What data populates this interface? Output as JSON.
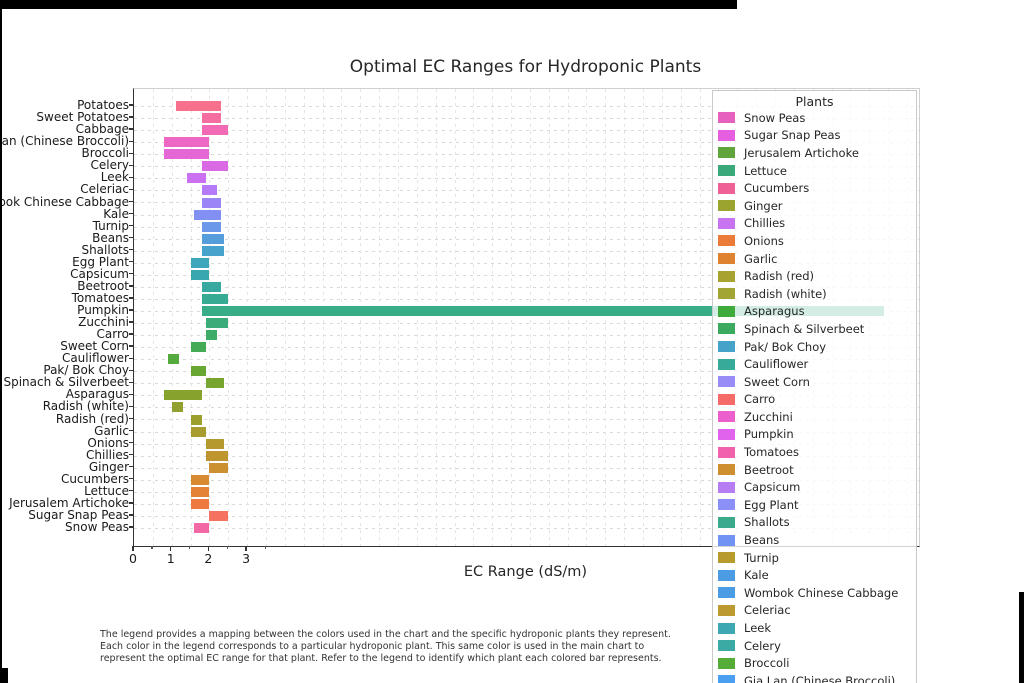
{
  "title": "Optimal EC Ranges for Hydroponic Plants",
  "x_axis": {
    "label": "EC Range (dS/m)",
    "ticks": [
      "0",
      "1",
      "2",
      "3"
    ]
  },
  "footnote": {
    "lines": [
      "The legend provides a mapping between the colors used in the chart and the specific hydroponic plants they represent.",
      "Each color in the legend corresponds to a particular hydroponic plant. This same color is used in the main chart to",
      "represent the optimal EC range for that plant. Refer to the legend to identify which plant each colored bar represents."
    ]
  },
  "legend": {
    "title": "Plants",
    "entries": [
      {
        "label": "Snow Peas",
        "color": "#e561bd"
      },
      {
        "label": "Sugar Snap Peas",
        "color": "#e55fe0"
      },
      {
        "label": "Jerusalem Artichoke",
        "color": "#60a53c"
      },
      {
        "label": "Lettuce",
        "color": "#3aa878"
      },
      {
        "label": "Cucumbers",
        "color": "#ef6096"
      },
      {
        "label": "Ginger",
        "color": "#9aa42f"
      },
      {
        "label": "Chillies",
        "color": "#c873f0"
      },
      {
        "label": "Onions",
        "color": "#ea7b38"
      },
      {
        "label": "Garlic",
        "color": "#df8331"
      },
      {
        "label": "Radish (red)",
        "color": "#a8a230"
      },
      {
        "label": "Radish (white)",
        "color": "#a2a433"
      },
      {
        "label": "Asparagus",
        "color": "#3fab3c"
      },
      {
        "label": "Spinach & Silverbeet",
        "color": "#3caa5e"
      },
      {
        "label": "Pak/ Bok Choy",
        "color": "#45a3c9"
      },
      {
        "label": "Cauliflower",
        "color": "#38aa99"
      },
      {
        "label": "Sweet Corn",
        "color": "#988df6"
      },
      {
        "label": "Carro",
        "color": "#f56b67"
      },
      {
        "label": "Zucchini",
        "color": "#ec60cd"
      },
      {
        "label": "Pumpkin",
        "color": "#df63ed"
      },
      {
        "label": "Tomatoes",
        "color": "#f161ac"
      },
      {
        "label": "Beetroot",
        "color": "#cd8f30"
      },
      {
        "label": "Capsicum",
        "color": "#b77ef4"
      },
      {
        "label": "Egg Plant",
        "color": "#8b8ff8"
      },
      {
        "label": "Shallots",
        "color": "#3ba98b"
      },
      {
        "label": "Beans",
        "color": "#7093f4"
      },
      {
        "label": "Turnip",
        "color": "#b89b2d"
      },
      {
        "label": "Kale",
        "color": "#4b9ce2"
      },
      {
        "label": "Wombok Chinese Cabbage",
        "color": "#4a9de4"
      },
      {
        "label": "Celeriac",
        "color": "#bd9a30"
      },
      {
        "label": "Leek",
        "color": "#3ea8b2"
      },
      {
        "label": "Celery",
        "color": "#3caaa4"
      },
      {
        "label": "Broccoli",
        "color": "#55ad38"
      },
      {
        "label": "Gia Lan (Chinese Broccoli)",
        "color": "#4a9ff0"
      }
    ]
  },
  "chart_data": {
    "type": "bar",
    "orientation": "horizontal",
    "title": "Optimal EC Ranges for Hydroponic Plants",
    "xlabel": "EC Range (dS/m)",
    "x_ticks_labeled": [
      0,
      1,
      2,
      3
    ],
    "grid": "dashed, light gray, both axes",
    "legend_position": "right overlay, semi-transparent white",
    "categories_top_to_bottom": [
      "Potatoes",
      "Sweet Potatoes",
      "Cabbage",
      "Gia Lan (Chinese Broccoli)",
      "Broccoli",
      "Celery",
      "Leek",
      "Celeriac",
      "Wombok Chinese Cabbage",
      "Kale",
      "Turnip",
      "Beans",
      "Shallots",
      "Egg Plant",
      "Capsicum",
      "Beetroot",
      "Tomatoes",
      "Pumpkin",
      "Zucchini",
      "Carro",
      "Sweet Corn",
      "Cauliflower",
      "Pak/ Bok Choy",
      "Spinach & Silverbeet",
      "Asparagus",
      "Radish (white)",
      "Radish (red)",
      "Garlic",
      "Onions",
      "Chillies",
      "Ginger",
      "Cucumbers",
      "Lettuce",
      "Jerusalem Artichoke",
      "Sugar Snap Peas",
      "Snow Peas"
    ],
    "ec_ranges_ds_per_m": [
      [
        1.1,
        2.3
      ],
      [
        1.8,
        2.3
      ],
      [
        1.8,
        2.5
      ],
      [
        0.8,
        2.0
      ],
      [
        0.8,
        2.0
      ],
      [
        1.8,
        2.5
      ],
      [
        1.4,
        1.9
      ],
      [
        1.8,
        2.2
      ],
      [
        1.8,
        2.3
      ],
      [
        1.6,
        2.3
      ],
      [
        1.8,
        2.3
      ],
      [
        1.8,
        2.4
      ],
      [
        1.8,
        2.4
      ],
      [
        1.5,
        2.0
      ],
      [
        1.5,
        2.0
      ],
      [
        1.8,
        2.3
      ],
      [
        1.8,
        2.5
      ],
      [
        1.8,
        19.9
      ],
      [
        1.9,
        2.5
      ],
      [
        1.9,
        2.2
      ],
      [
        1.5,
        1.9
      ],
      [
        0.9,
        1.2
      ],
      [
        1.5,
        1.9
      ],
      [
        1.9,
        2.4
      ],
      [
        0.8,
        1.8
      ],
      [
        1.0,
        1.3
      ],
      [
        1.5,
        1.8
      ],
      [
        1.5,
        1.9
      ],
      [
        1.9,
        2.4
      ],
      [
        1.9,
        2.5
      ],
      [
        2.0,
        2.5
      ],
      [
        1.5,
        2.0
      ],
      [
        1.5,
        2.0
      ],
      [
        1.5,
        2.0
      ],
      [
        2.0,
        2.5
      ],
      [
        1.6,
        2.0
      ]
    ],
    "bar_colors": [
      "#f7718d",
      "#f56ea1",
      "#f26ab4",
      "#ed68c5",
      "#e567d5",
      "#da69e4",
      "#ca70f1",
      "#b47af7",
      "#9c86f7",
      "#8390f3",
      "#6b98e9",
      "#569edb",
      "#47a3cb",
      "#3da6bc",
      "#39a8ae",
      "#38a9a0",
      "#37aa94",
      "#38ab87",
      "#3aab79",
      "#3eab69",
      "#46ab55",
      "#55aa3d",
      "#68a732",
      "#78a52f",
      "#86a32e",
      "#92a12d",
      "#9d9f2d",
      "#a89c2e",
      "#b3992e",
      "#bf952f",
      "#cb9130",
      "#d88a33",
      "#e48338",
      "#ee7a41",
      "#f4725f",
      "#f367a5"
    ],
    "anomaly": "Pumpkin bar extends far right to ~19.9 dS/m, passing beneath the semi-transparent legend box"
  }
}
